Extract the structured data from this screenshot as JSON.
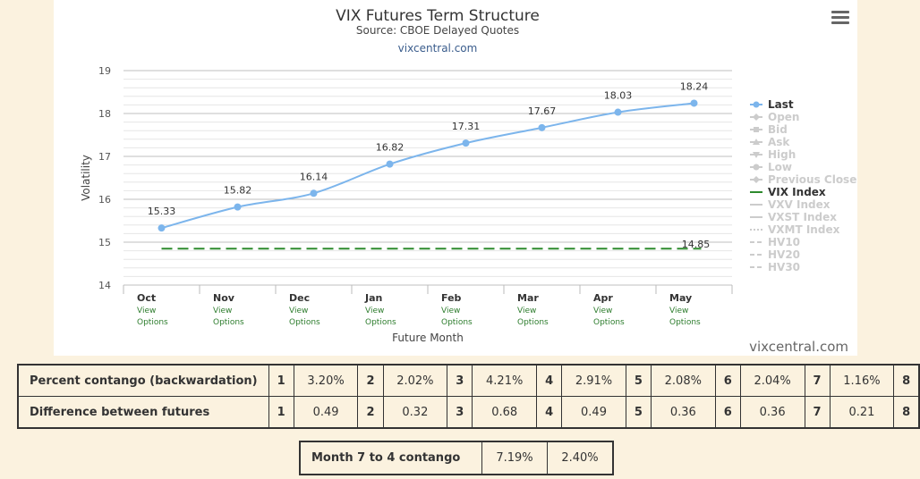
{
  "header": {
    "title": "VIX Futures Term Structure",
    "subtitle": "Source: CBOE Delayed Quotes",
    "credit_link": "vixcentral.com",
    "watermark": "vixcentral.com"
  },
  "menu_icon": "hamburger-menu-icon",
  "colors": {
    "last_series": "#7cb5ec",
    "vix_index": "#2e8b2e",
    "legend_inactive": "#cccccc",
    "options_link": "#2e7d2e",
    "page_bg": "#fbf2df"
  },
  "chart_data": {
    "type": "line",
    "title": "VIX Futures Term Structure",
    "subtitle": "Source: CBOE Delayed Quotes",
    "xlabel": "Future Month",
    "ylabel": "Volatility",
    "ylim": [
      14,
      19
    ],
    "yticks": [
      14,
      15,
      16,
      17,
      18,
      19
    ],
    "grid": true,
    "legend_placement": "right",
    "categories": [
      "Oct",
      "Nov",
      "Dec",
      "Jan",
      "Feb",
      "Mar",
      "Apr",
      "May"
    ],
    "category_sublabel": [
      "View",
      "Options"
    ],
    "series": [
      {
        "name": "Last",
        "values": [
          15.33,
          15.82,
          16.14,
          16.82,
          17.31,
          17.67,
          18.03,
          18.24
        ],
        "labels": [
          "15.33",
          "15.82",
          "16.14",
          "16.82",
          "17.31",
          "17.67",
          "18.03",
          "18.24"
        ]
      },
      {
        "name": "VIX Index",
        "values": [
          14.85,
          14.85,
          14.85,
          14.85,
          14.85,
          14.85,
          14.85,
          14.85
        ],
        "end_label": "14.85"
      }
    ],
    "legend": [
      {
        "name": "Last",
        "active": true,
        "symbol": "circle-line"
      },
      {
        "name": "Open",
        "active": false,
        "symbol": "diamond-line"
      },
      {
        "name": "Bid",
        "active": false,
        "symbol": "square-line"
      },
      {
        "name": "Ask",
        "active": false,
        "symbol": "triangle-line"
      },
      {
        "name": "High",
        "active": false,
        "symbol": "triangle-down-line"
      },
      {
        "name": "Low",
        "active": false,
        "symbol": "circle-line"
      },
      {
        "name": "Previous Close",
        "active": false,
        "symbol": "diamond-line"
      },
      {
        "name": "VIX Index",
        "active": true,
        "symbol": "line"
      },
      {
        "name": "VXV Index",
        "active": false,
        "symbol": "line"
      },
      {
        "name": "VXST Index",
        "active": false,
        "symbol": "line"
      },
      {
        "name": "VXMT Index",
        "active": false,
        "symbol": "dotted-line"
      },
      {
        "name": "HV10",
        "active": false,
        "symbol": "dashed-line"
      },
      {
        "name": "HV20",
        "active": false,
        "symbol": "dashed-line"
      },
      {
        "name": "HV30",
        "active": false,
        "symbol": "dashed-line"
      }
    ]
  },
  "stats_table": {
    "rows": [
      {
        "label": "Percent contango (backwardation)",
        "pairs": [
          [
            "1",
            "3.20%"
          ],
          [
            "2",
            "2.02%"
          ],
          [
            "3",
            "4.21%"
          ],
          [
            "4",
            "2.91%"
          ],
          [
            "5",
            "2.08%"
          ],
          [
            "6",
            "2.04%"
          ],
          [
            "7",
            "1.16%"
          ]
        ],
        "last_index": "8"
      },
      {
        "label": "Difference between futures",
        "pairs": [
          [
            "1",
            "0.49"
          ],
          [
            "2",
            "0.32"
          ],
          [
            "3",
            "0.68"
          ],
          [
            "4",
            "0.49"
          ],
          [
            "5",
            "0.36"
          ],
          [
            "6",
            "0.36"
          ],
          [
            "7",
            "0.21"
          ]
        ],
        "last_index": "8"
      }
    ]
  },
  "month_table": {
    "label": "Month 7 to 4 contango",
    "values": [
      "7.19%",
      "2.40%"
    ]
  }
}
